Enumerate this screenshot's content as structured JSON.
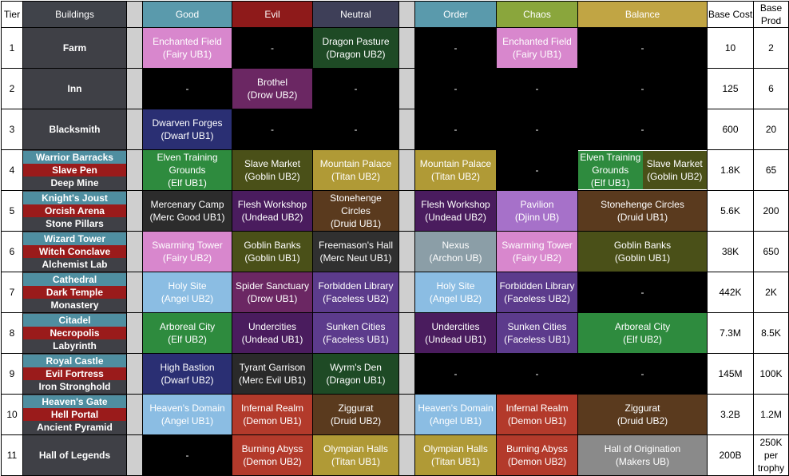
{
  "headers": {
    "tier": "Tier",
    "buildings": "Buildings",
    "good": "Good",
    "evil": "Evil",
    "neutral": "Neutral",
    "order": "Order",
    "chaos": "Chaos",
    "balance": "Balance",
    "cost": "Base Cost",
    "prod": "Base Prod"
  },
  "colors": {
    "fairy": "#d887cd",
    "dragon": "#1e4a25",
    "drow": "#6b2763",
    "dwarf": "#2a2f73",
    "elf": "#2e8b3e",
    "goblin": "#4a5018",
    "titan": "#b09a36",
    "merc_good": "#2c2c2c",
    "undead": "#4a1c5e",
    "druid": "#5a3a1e",
    "djinn": "#a671c9",
    "merc_neut": "#303030",
    "archon": "#8b9ea7",
    "angel": "#8bbde3",
    "faceless": "#5c3b8c",
    "merc_evil": "#2a2a2a",
    "demon": "#b33a2b",
    "makers": "#8a8a8a",
    "none": "#000000"
  },
  "rows": [
    {
      "tier": "1",
      "buildings": [
        "Farm"
      ],
      "good": "Enchanted Field\n(Fairy UB1)",
      "evil": "-",
      "neutral": "Dragon Pasture\n(Dragon UB2)",
      "order": "-",
      "chaos": "Enchanted Field\n(Fairy UB1)",
      "balance": [
        "-"
      ],
      "cost": "10",
      "prod": "2"
    },
    {
      "tier": "2",
      "buildings": [
        "Inn"
      ],
      "good": "-",
      "evil": "Brothel\n(Drow UB2)",
      "neutral": "-",
      "order": "-",
      "chaos": "-",
      "balance": [
        "-"
      ],
      "cost": "125",
      "prod": "6"
    },
    {
      "tier": "3",
      "buildings": [
        "Blacksmith"
      ],
      "good": "Dwarven Forges\n(Dwarf UB1)",
      "evil": "-",
      "neutral": "-",
      "order": "-",
      "chaos": "-",
      "balance": [
        "-"
      ],
      "cost": "600",
      "prod": "20"
    },
    {
      "tier": "4",
      "buildings": [
        "Warrior Barracks",
        "Slave Pen",
        "Deep Mine"
      ],
      "good": "Elven Training Grounds\n(Elf UB1)",
      "evil": "Slave Market\n(Goblin UB2)",
      "neutral": "Mountain Palace\n(Titan UB2)",
      "order": "Mountain Palace\n(Titan UB2)",
      "chaos": "-",
      "balance": [
        "Elven Training Grounds\n(Elf UB1)",
        "Slave Market\n(Goblin UB2)"
      ],
      "cost": "1.8K",
      "prod": "65"
    },
    {
      "tier": "5",
      "buildings": [
        "Knight's Joust",
        "Orcish Arena",
        "Stone Pillars"
      ],
      "good": "Mercenary Camp\n(Merc Good UB1)",
      "evil": "Flesh Workshop\n(Undead UB2)",
      "neutral": "Stonehenge Circles\n(Druid UB1)",
      "order": "Flesh Workshop\n(Undead UB2)",
      "chaos": "Pavilion\n(Djinn UB)",
      "balance": [
        "Stonehenge Circles\n(Druid UB1)"
      ],
      "cost": "5.6K",
      "prod": "200"
    },
    {
      "tier": "6",
      "buildings": [
        "Wizard Tower",
        "Witch Conclave",
        "Alchemist Lab"
      ],
      "good": "Swarming Tower\n(Fairy UB2)",
      "evil": "Goblin Banks\n(Goblin UB1)",
      "neutral": "Freemason's Hall\n(Merc Neut UB1)",
      "order": "Nexus\n(Archon UB)",
      "chaos": "Swarming Tower\n(Fairy UB2)",
      "balance": [
        "Goblin Banks\n(Goblin UB1)"
      ],
      "cost": "38K",
      "prod": "650"
    },
    {
      "tier": "7",
      "buildings": [
        "Cathedral",
        "Dark Temple",
        "Monastery"
      ],
      "good": "Holy Site\n(Angel UB2)",
      "evil": "Spider Sanctuary\n(Drow UB1)",
      "neutral": "Forbidden Library\n(Faceless UB2)",
      "order": "Holy Site\n(Angel UB2)",
      "chaos": "Forbidden Library\n(Faceless UB2)",
      "balance": [
        "-"
      ],
      "cost": "442K",
      "prod": "2K"
    },
    {
      "tier": "8",
      "buildings": [
        "Citadel",
        "Necropolis",
        "Labyrinth"
      ],
      "good": "Arboreal City\n(Elf UB2)",
      "evil": "Undercities\n(Undead UB1)",
      "neutral": "Sunken Cities\n(Faceless UB1)",
      "order": "Undercities\n(Undead UB1)",
      "chaos": "Sunken Cities\n(Faceless UB1)",
      "balance": [
        "Arboreal City\n(Elf UB2)"
      ],
      "cost": "7.3M",
      "prod": "8.5K"
    },
    {
      "tier": "9",
      "buildings": [
        "Royal Castle",
        "Evil Fortress",
        "Iron Stronghold"
      ],
      "good": "High Bastion\n(Dwarf UB2)",
      "evil": "Tyrant Garrison\n(Merc Evil UB1)",
      "neutral": "Wyrm's Den\n(Dragon UB1)",
      "order": "-",
      "chaos": "-",
      "balance": [
        "-"
      ],
      "cost": "145M",
      "prod": "100K"
    },
    {
      "tier": "10",
      "buildings": [
        "Heaven's Gate",
        "Hell Portal",
        "Ancient Pyramid"
      ],
      "good": "Heaven's Domain\n(Angel UB1)",
      "evil": "Infernal Realm\n(Demon UB1)",
      "neutral": "Ziggurat\n(Druid UB2)",
      "order": "Heaven's Domain\n(Angel UB1)",
      "chaos": "Infernal Realm\n(Demon UB1)",
      "balance": [
        "Ziggurat\n(Druid UB2)"
      ],
      "cost": "3.2B",
      "prod": "1.2M"
    },
    {
      "tier": "11",
      "buildings": [
        "Hall of Legends"
      ],
      "good": "-",
      "evil": "Burning Abyss\n(Demon UB2)",
      "neutral": "Olympian Halls\n(Titan UB1)",
      "order": "Olympian Halls\n(Titan UB1)",
      "chaos": "Burning Abyss\n(Demon UB2)",
      "balance": [
        "Hall of Origination\n(Makers UB)"
      ],
      "cost": "200B",
      "prod": "250K per\ntrophy"
    }
  ]
}
